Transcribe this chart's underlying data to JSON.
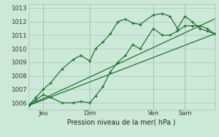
{
  "xlabel": "Pression niveau de la mer( hPa )",
  "bg_color": "#cce8d8",
  "grid_color": "#aaccbb",
  "line_color": "#1a6b2a",
  "vline_color": "#4a7a5a",
  "ylim": [
    1005.5,
    1013.3
  ],
  "xlim": [
    0,
    100
  ],
  "xtick_positions": [
    8,
    33,
    67,
    84
  ],
  "xtick_labels": [
    "Jeu",
    "Dim",
    "Ven",
    "Sam"
  ],
  "ytick_positions": [
    1006,
    1007,
    1008,
    1009,
    1010,
    1011,
    1012,
    1013
  ],
  "vline_positions": [
    8,
    33,
    67,
    84
  ],
  "series1_x": [
    0,
    4,
    8,
    12,
    18,
    24,
    28,
    33,
    36,
    40,
    44,
    48,
    52,
    56,
    60,
    67,
    72,
    76,
    80,
    84,
    88,
    92,
    96,
    100
  ],
  "series1_y": [
    1005.8,
    1006.2,
    1006.6,
    1006.4,
    1006.0,
    1006.0,
    1006.1,
    1006.0,
    1006.5,
    1007.2,
    1008.3,
    1009.0,
    1009.5,
    1010.3,
    1010.0,
    1011.5,
    1011.0,
    1011.0,
    1011.3,
    1011.7,
    1011.7,
    1011.7,
    1011.5,
    1011.1
  ],
  "series2_x": [
    0,
    4,
    8,
    12,
    18,
    24,
    28,
    33,
    36,
    40,
    44,
    48,
    52,
    56,
    60,
    67,
    72,
    76,
    80,
    84,
    88,
    92,
    96,
    100
  ],
  "series2_y": [
    1005.8,
    1006.4,
    1007.0,
    1007.5,
    1008.5,
    1009.2,
    1009.5,
    1009.1,
    1010.0,
    1010.5,
    1011.1,
    1012.0,
    1012.2,
    1011.9,
    1011.8,
    1012.5,
    1012.6,
    1012.4,
    1011.5,
    1012.4,
    1012.0,
    1011.5,
    1011.3,
    1011.1
  ],
  "series3_x": [
    0,
    100
  ],
  "series3_y": [
    1005.8,
    1011.1
  ],
  "series4_x": [
    0,
    100
  ],
  "series4_y": [
    1005.8,
    1012.2
  ]
}
